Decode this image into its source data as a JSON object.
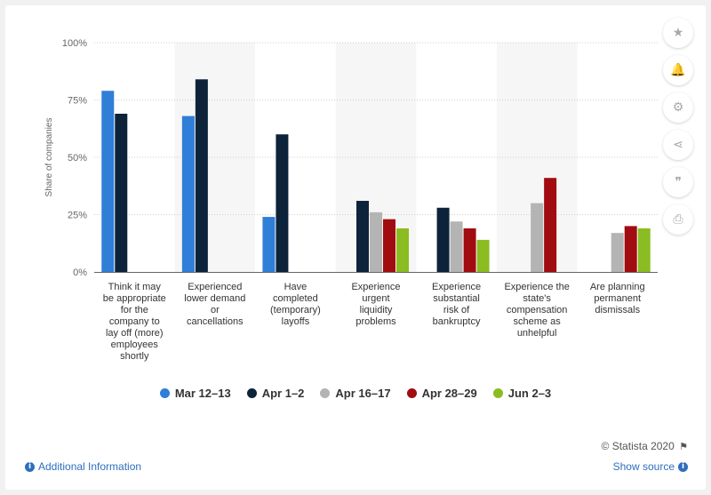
{
  "chart_data": {
    "type": "bar",
    "ylabel": "Share of companies",
    "ylim": [
      0,
      100
    ],
    "yticks": [
      "0%",
      "25%",
      "50%",
      "75%",
      "100%"
    ],
    "yticks_values": [
      0,
      25,
      50,
      75,
      100
    ],
    "grid": true,
    "legend_position": "bottom",
    "categories": [
      [
        "Think it may",
        "be appropriate",
        "for the",
        "company to",
        "lay off (more)",
        "employees",
        "shortly"
      ],
      [
        "Experienced",
        "lower demand",
        "or",
        "cancellations"
      ],
      [
        "Have",
        "completed",
        "(temporary)",
        "layoffs"
      ],
      [
        "Experience",
        "urgent",
        "liquidity",
        "problems"
      ],
      [
        "Experience",
        "substantial",
        "risk of",
        "bankruptcy"
      ],
      [
        "Experience the",
        "state's",
        "compensation",
        "scheme as",
        "unhelpful"
      ],
      [
        "Are planning",
        "permanent",
        "dismissals"
      ]
    ],
    "series": [
      {
        "name": "Mar 12–13",
        "color": "#2f7ed8",
        "values": [
          79,
          68,
          24,
          null,
          null,
          null,
          null
        ]
      },
      {
        "name": "Apr 1–2",
        "color": "#0d233a",
        "values": [
          69,
          84,
          60,
          31,
          28,
          null,
          null
        ]
      },
      {
        "name": "Apr 16–17",
        "color": "#b4b4b4",
        "values": [
          null,
          null,
          null,
          26,
          22,
          30,
          17
        ]
      },
      {
        "name": "Apr 28–29",
        "color": "#a10c11",
        "values": [
          null,
          null,
          null,
          23,
          19,
          41,
          20
        ]
      },
      {
        "name": "Jun 2–3",
        "color": "#8bbc21",
        "values": [
          null,
          null,
          null,
          19,
          14,
          null,
          19
        ]
      }
    ]
  },
  "sidebar": {
    "icons": [
      {
        "name": "star-icon",
        "glyph": "★"
      },
      {
        "name": "bell-icon",
        "glyph": "🔔"
      },
      {
        "name": "gear-icon",
        "glyph": "⚙"
      },
      {
        "name": "share-icon",
        "glyph": "⋖"
      },
      {
        "name": "quote-icon",
        "glyph": "❞"
      },
      {
        "name": "print-icon",
        "glyph": "⎙"
      }
    ]
  },
  "footer": {
    "credit": "© Statista 2020",
    "additional_info": "Additional Information",
    "show_source": "Show source"
  }
}
